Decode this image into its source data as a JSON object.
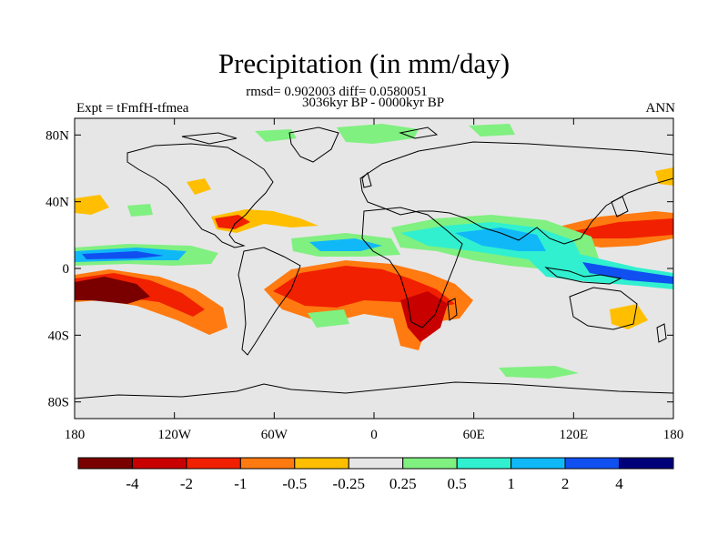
{
  "title": "Precipitation (in mm/day)",
  "stats_line": "rmsd= 0.902003 diff= 0.0580051",
  "period_line": "3036kyr BP - 0000kyr BP",
  "experiment_label": "Expt = tFmfH-tfmea",
  "season_label": "ANN",
  "axes": {
    "x_ticks": [
      "180",
      "120W",
      "60W",
      "0",
      "60E",
      "120E",
      "180"
    ],
    "y_ticks": [
      "80N",
      "40N",
      "0",
      "40S",
      "80S"
    ],
    "lon_range": [
      -180,
      180
    ],
    "lat_range": [
      -90,
      90
    ]
  },
  "colorbar": {
    "labels": [
      "-4",
      "-2",
      "-1",
      "-0.5",
      "-0.25",
      "0.25",
      "0.5",
      "1",
      "2",
      "4"
    ],
    "colors": [
      "#7a0000",
      "#c80000",
      "#f02000",
      "#ff7a10",
      "#ffbf00",
      "#e6e6e6",
      "#80f080",
      "#30f0d0",
      "#10b8f8",
      "#1050f0",
      "#00007a"
    ]
  },
  "colors": {
    "background": "#e6e6e6",
    "coast": "#000000"
  }
}
